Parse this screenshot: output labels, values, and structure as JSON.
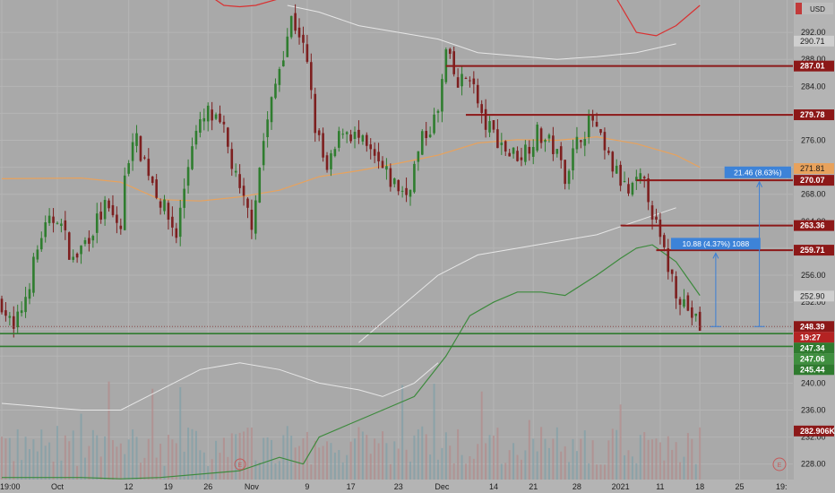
{
  "chart_data": {
    "type": "candlestick",
    "currency_label": "USD",
    "y_ticks": [
      "292.00",
      "288.00",
      "284.00",
      "280.00",
      "276.00",
      "272.00",
      "268.00",
      "264.00",
      "260.00",
      "256.00",
      "252.00",
      "248.00",
      "244.00",
      "240.00",
      "236.00",
      "232.00",
      "228.00"
    ],
    "y_tick_values": [
      292,
      288,
      284,
      280,
      276,
      272,
      268,
      264,
      260,
      256,
      252,
      248,
      244,
      240,
      236,
      232,
      228
    ],
    "ylim": [
      225.7,
      296.8
    ],
    "x_ticks": [
      "19:00",
      "Oct",
      "12",
      "19",
      "26",
      "Nov",
      "9",
      "17",
      "23",
      "Dec",
      "14",
      "21",
      "28",
      "2021",
      "11",
      "18",
      "25",
      "19:"
    ],
    "x_tick_index": [
      0,
      14,
      32,
      42,
      52,
      63,
      77,
      88,
      100,
      111,
      124,
      134,
      145,
      156,
      166,
      176,
      186,
      198
    ],
    "bar_count": 200,
    "candles_last_bar": 176,
    "resistance_lines": [
      {
        "label": "287.01",
        "value": 287.01,
        "start": 112
      },
      {
        "label": "279.78",
        "value": 279.78,
        "start": 117
      },
      {
        "label": "270.07",
        "value": 270.07,
        "start": 160
      },
      {
        "label": "263.36",
        "value": 263.36,
        "start": 156
      },
      {
        "label": "259.71",
        "value": 259.71,
        "start": 165
      }
    ],
    "support_lines": [
      {
        "label": "247.34",
        "value": 247.34
      },
      {
        "label": "245.44",
        "value": 245.44
      }
    ],
    "price_tags": [
      {
        "label": "290.71",
        "value": 290.71,
        "style": "light"
      },
      {
        "label": "287.01",
        "value": 287.01,
        "style": "red"
      },
      {
        "label": "279.78",
        "value": 279.78,
        "style": "red"
      },
      {
        "label": "271.81",
        "value": 271.81,
        "style": "orange"
      },
      {
        "label": "270.07",
        "value": 270.07,
        "style": "red"
      },
      {
        "label": "263.36",
        "value": 263.36,
        "style": "red"
      },
      {
        "label": "259.71",
        "value": 259.71,
        "style": "red"
      },
      {
        "label": "252.90",
        "value": 252.9,
        "style": "light"
      },
      {
        "label": "248.39",
        "value": 248.39,
        "style": "red"
      },
      {
        "label": "19:27",
        "value": 246.9,
        "style": "redtimer"
      },
      {
        "label": "247.34",
        "value": 247.34,
        "style": "green"
      },
      {
        "label": "247.06",
        "value": 247.06,
        "style": "greenlight"
      },
      {
        "label": "245.44",
        "value": 245.44,
        "style": "green"
      },
      {
        "label": "282.906K",
        "value": 232.9,
        "style": "red"
      }
    ],
    "measurements": [
      {
        "label": "21.46 (8.63%)",
        "from": 248.39,
        "to": 269.85,
        "at": 191
      },
      {
        "label": "10.88 (4.37%) 1088",
        "from": 248.39,
        "to": 259.27,
        "at": 180
      }
    ],
    "series": [
      {
        "name": "",
        "kind": "ma-long",
        "color": "#e8a25c"
      },
      {
        "name": "",
        "kind": "ma-fast",
        "color": "#3d8a3d"
      },
      {
        "name": "",
        "kind": "band-upper",
        "color": "#d93131"
      },
      {
        "name": "",
        "kind": "band-inner",
        "color": "#e6e6e6"
      }
    ],
    "colors": {
      "up": "#2f7d2f",
      "down": "#7d1f1f",
      "background": "#a9a9a9",
      "resistance": "#8c1818",
      "support": "#2f7b2f"
    }
  }
}
